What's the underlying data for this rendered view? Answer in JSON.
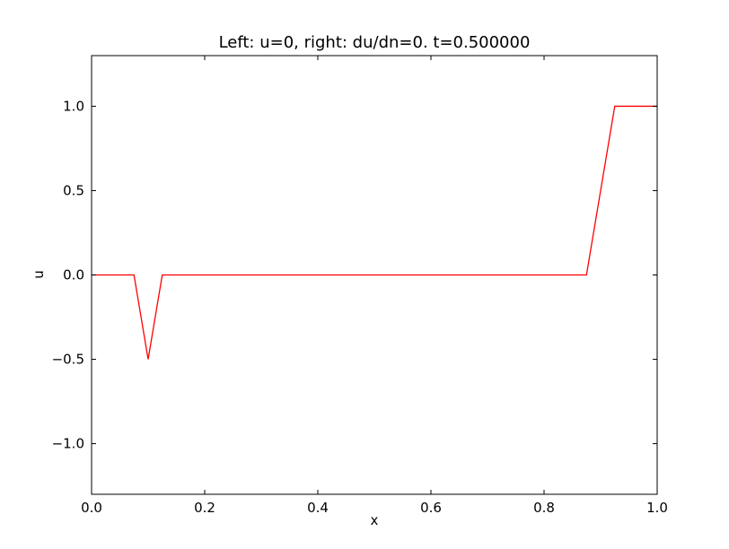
{
  "chart_data": {
    "type": "line",
    "title": "Left: u=0, right: du/dn=0. t=0.500000",
    "xlabel": "x",
    "ylabel": "u",
    "xlim": [
      0.0,
      1.0
    ],
    "ylim": [
      -1.3,
      1.3
    ],
    "grid": false,
    "xticks": [
      {
        "value": 0.0,
        "label": "0.0"
      },
      {
        "value": 0.2,
        "label": "0.2"
      },
      {
        "value": 0.4,
        "label": "0.4"
      },
      {
        "value": 0.6,
        "label": "0.6"
      },
      {
        "value": 0.8,
        "label": "0.8"
      },
      {
        "value": 1.0,
        "label": "1.0"
      }
    ],
    "yticks": [
      {
        "value": -1.0,
        "label": "−1.0"
      },
      {
        "value": -0.5,
        "label": "−0.5"
      },
      {
        "value": 0.0,
        "label": "0.0"
      },
      {
        "value": 0.5,
        "label": "0.5"
      },
      {
        "value": 1.0,
        "label": "1.0"
      }
    ],
    "series": [
      {
        "color": "#ff0000",
        "x": [
          0.0,
          0.075,
          0.1,
          0.125,
          0.875,
          0.925,
          1.0
        ],
        "y": [
          0.0,
          0.0,
          -0.5,
          0.0,
          0.0,
          1.0,
          1.0
        ]
      }
    ]
  }
}
